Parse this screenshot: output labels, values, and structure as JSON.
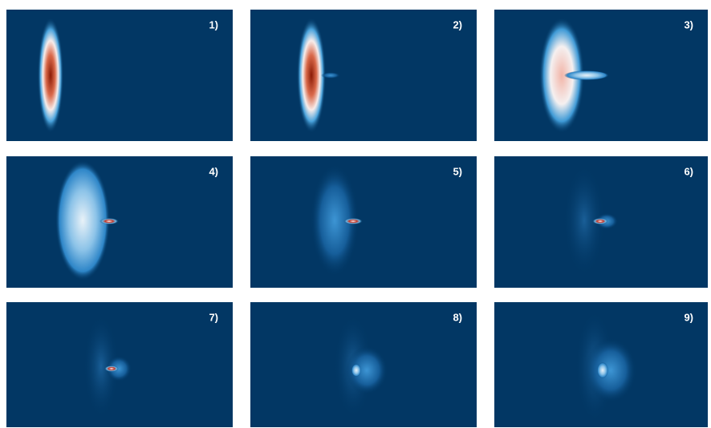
{
  "panels": [
    {
      "label": "1)"
    },
    {
      "label": "2)"
    },
    {
      "label": "3)"
    },
    {
      "label": "4)"
    },
    {
      "label": "5)"
    },
    {
      "label": "6)"
    },
    {
      "label": "7)"
    },
    {
      "label": "8)"
    },
    {
      "label": "9)"
    }
  ]
}
